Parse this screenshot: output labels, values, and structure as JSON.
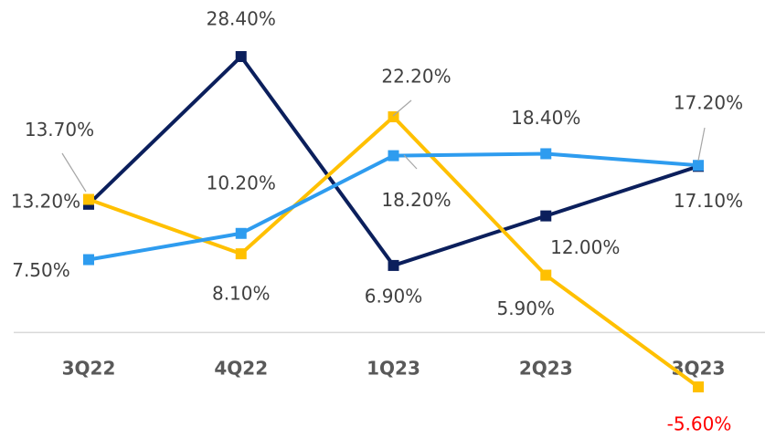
{
  "chart_data": {
    "type": "line",
    "categories": [
      "3Q22",
      "4Q22",
      "1Q23",
      "2Q23",
      "3Q23"
    ],
    "series": [
      {
        "color": "#0b1f5c",
        "values": [
          13.2,
          28.4,
          6.9,
          12.0,
          17.1
        ],
        "value_labels": [
          "13.20%",
          "28.40%",
          "6.90%",
          "12.00%",
          "17.10%"
        ]
      },
      {
        "color": "#ffc000",
        "values": [
          13.7,
          8.1,
          22.2,
          5.9,
          -5.6
        ],
        "value_labels": [
          "13.70%",
          "8.10%",
          "22.20%",
          "5.90%",
          "-5.60%"
        ]
      },
      {
        "color": "#2e9cef",
        "values": [
          7.5,
          10.2,
          18.2,
          18.4,
          17.2
        ],
        "value_labels": [
          "7.50%",
          "10.20%",
          "18.20%",
          "18.40%",
          "17.20%"
        ]
      }
    ]
  }
}
